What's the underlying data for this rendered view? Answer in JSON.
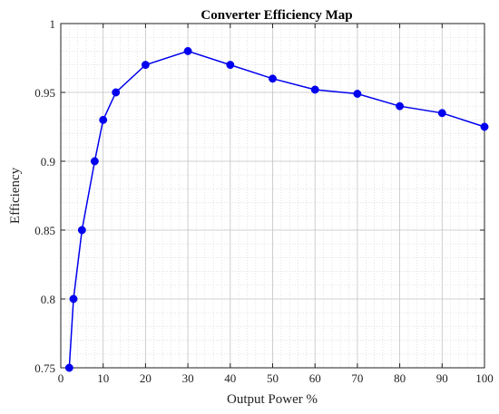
{
  "chart_data": {
    "type": "line",
    "title": "Converter Efficiency Map",
    "xlabel": "Output Power %",
    "ylabel": "Efficiency",
    "xlim": [
      0,
      100
    ],
    "ylim": [
      0.75,
      1
    ],
    "grid": true,
    "minor_grid": true,
    "x_ticks": [
      0,
      10,
      20,
      30,
      40,
      50,
      60,
      70,
      80,
      90,
      100
    ],
    "x_tick_labels": [
      "0",
      "10",
      "20",
      "30",
      "40",
      "50",
      "60",
      "70",
      "80",
      "90",
      "100"
    ],
    "y_ticks": [
      0.75,
      0.8,
      0.85,
      0.9,
      0.95,
      1
    ],
    "y_tick_labels": [
      "0.75",
      "0.8",
      "0.85",
      "0.9",
      "0.95",
      "1"
    ],
    "series": [
      {
        "color": "#0000ee",
        "marker": "circle",
        "x": [
          2,
          3,
          5,
          8,
          10,
          13,
          20,
          30,
          40,
          50,
          60,
          70,
          80,
          90,
          100
        ],
        "y": [
          0.75,
          0.8,
          0.85,
          0.9,
          0.93,
          0.95,
          0.97,
          0.98,
          0.97,
          0.96,
          0.952,
          0.949,
          0.94,
          0.935,
          0.925
        ]
      }
    ]
  }
}
